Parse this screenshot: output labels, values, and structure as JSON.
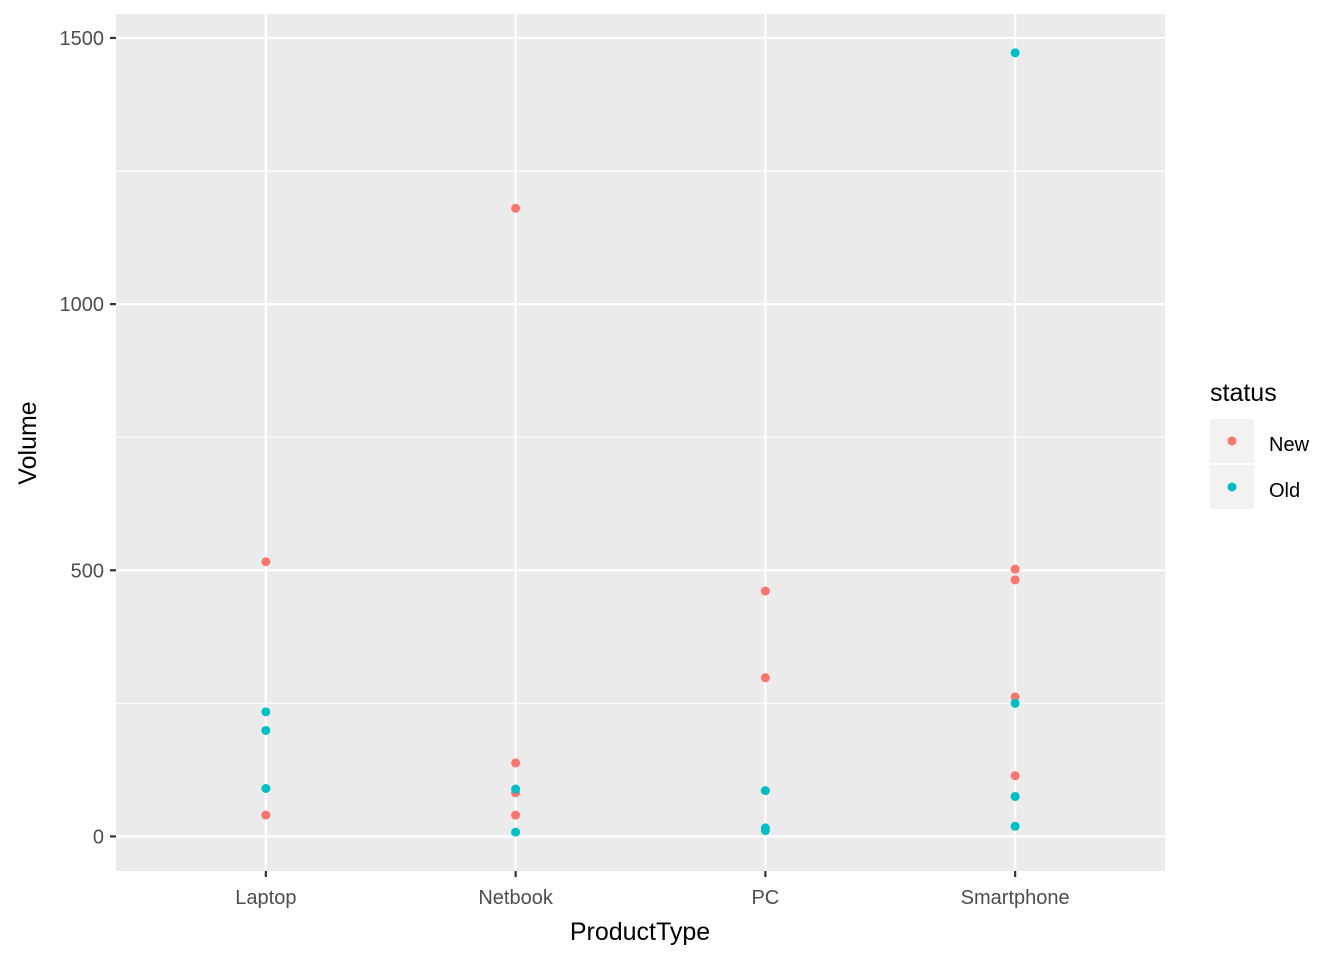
{
  "chart_data": {
    "type": "scatter",
    "xlabel": "ProductType",
    "ylabel": "Volume",
    "categories": [
      "Laptop",
      "Netbook",
      "PC",
      "Smartphone"
    ],
    "yticks": [
      0,
      500,
      1000,
      1500
    ],
    "ylim": [
      -65,
      1545
    ],
    "grid": true,
    "legend": {
      "title": "status",
      "placement": "right",
      "entries": [
        {
          "label": "New",
          "color": "#F8766D"
        },
        {
          "label": "Old",
          "color": "#00BFC4"
        }
      ]
    },
    "series": [
      {
        "name": "New",
        "color": "#F8766D",
        "points": [
          {
            "x": "Laptop",
            "y": 516
          },
          {
            "x": "Laptop",
            "y": 40
          },
          {
            "x": "Netbook",
            "y": 1180
          },
          {
            "x": "Netbook",
            "y": 138
          },
          {
            "x": "Netbook",
            "y": 82
          },
          {
            "x": "Netbook",
            "y": 40
          },
          {
            "x": "PC",
            "y": 461
          },
          {
            "x": "PC",
            "y": 298
          },
          {
            "x": "Smartphone",
            "y": 502
          },
          {
            "x": "Smartphone",
            "y": 482
          },
          {
            "x": "Smartphone",
            "y": 262
          },
          {
            "x": "Smartphone",
            "y": 114
          }
        ]
      },
      {
        "name": "Old",
        "color": "#00BFC4",
        "points": [
          {
            "x": "Laptop",
            "y": 234
          },
          {
            "x": "Laptop",
            "y": 199
          },
          {
            "x": "Laptop",
            "y": 90
          },
          {
            "x": "Netbook",
            "y": 89
          },
          {
            "x": "Netbook",
            "y": 8
          },
          {
            "x": "PC",
            "y": 86
          },
          {
            "x": "PC",
            "y": 16
          },
          {
            "x": "PC",
            "y": 11
          },
          {
            "x": "Smartphone",
            "y": 1472
          },
          {
            "x": "Smartphone",
            "y": 250
          },
          {
            "x": "Smartphone",
            "y": 75
          },
          {
            "x": "Smartphone",
            "y": 19
          }
        ]
      }
    ]
  }
}
